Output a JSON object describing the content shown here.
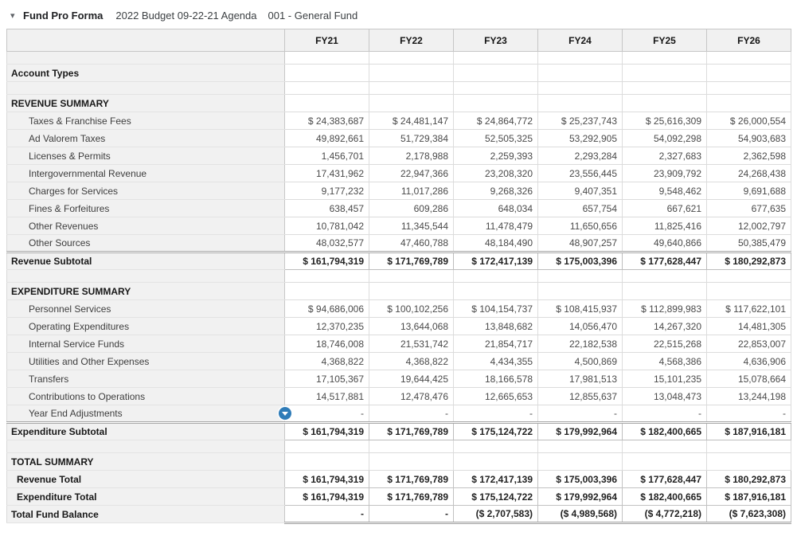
{
  "header": {
    "collapse_icon": "▾",
    "title": "Fund Pro Forma",
    "budget_name": "2022 Budget 09-22-21 Agenda",
    "fund_name": "001 - General Fund"
  },
  "colors": {
    "accent_blue": "#2f7cb8",
    "label_column_bg": "#f1f1f1",
    "grid_border": "#dcdcdc"
  },
  "table": {
    "columns": [
      "FY21",
      "FY22",
      "FY23",
      "FY24",
      "FY25",
      "FY26"
    ],
    "rows": [
      {
        "type": "spacer",
        "label": "",
        "values": [
          "",
          "",
          "",
          "",
          "",
          ""
        ]
      },
      {
        "type": "group",
        "label": "Account Types",
        "values": [
          "",
          "",
          "",
          "",
          "",
          ""
        ]
      },
      {
        "type": "spacer",
        "label": "",
        "values": [
          "",
          "",
          "",
          "",
          "",
          ""
        ]
      },
      {
        "type": "section",
        "label": "REVENUE SUMMARY",
        "values": [
          "",
          "",
          "",
          "",
          "",
          ""
        ]
      },
      {
        "type": "detail",
        "label": "Taxes & Franchise Fees",
        "values": [
          "$ 24,383,687",
          "$ 24,481,147",
          "$ 24,864,772",
          "$ 25,237,743",
          "$ 25,616,309",
          "$ 26,000,554"
        ]
      },
      {
        "type": "detail",
        "label": "Ad Valorem Taxes",
        "values": [
          "49,892,661",
          "51,729,384",
          "52,505,325",
          "53,292,905",
          "54,092,298",
          "54,903,683"
        ]
      },
      {
        "type": "detail",
        "label": "Licenses & Permits",
        "values": [
          "1,456,701",
          "2,178,988",
          "2,259,393",
          "2,293,284",
          "2,327,683",
          "2,362,598"
        ]
      },
      {
        "type": "detail",
        "label": "Intergovernmental Revenue",
        "values": [
          "17,431,962",
          "22,947,366",
          "23,208,320",
          "23,556,445",
          "23,909,792",
          "24,268,438"
        ]
      },
      {
        "type": "detail",
        "label": "Charges for Services",
        "values": [
          "9,177,232",
          "11,017,286",
          "9,268,326",
          "9,407,351",
          "9,548,462",
          "9,691,688"
        ]
      },
      {
        "type": "detail",
        "label": "Fines & Forfeitures",
        "values": [
          "638,457",
          "609,286",
          "648,034",
          "657,754",
          "667,621",
          "677,635"
        ]
      },
      {
        "type": "detail",
        "label": "Other Revenues",
        "values": [
          "10,781,042",
          "11,345,544",
          "11,478,479",
          "11,650,656",
          "11,825,416",
          "12,002,797"
        ]
      },
      {
        "type": "detail",
        "label": "Other Sources",
        "values": [
          "48,032,577",
          "47,460,788",
          "48,184,490",
          "48,907,257",
          "49,640,866",
          "50,385,479"
        ]
      },
      {
        "type": "subtotal",
        "label": "Revenue Subtotal",
        "values": [
          "$ 161,794,319",
          "$ 171,769,789",
          "$ 172,417,139",
          "$ 175,003,396",
          "$ 177,628,447",
          "$ 180,292,873"
        ]
      },
      {
        "type": "spacer",
        "label": "",
        "values": [
          "",
          "",
          "",
          "",
          "",
          ""
        ]
      },
      {
        "type": "section",
        "label": "EXPENDITURE SUMMARY",
        "values": [
          "",
          "",
          "",
          "",
          "",
          ""
        ]
      },
      {
        "type": "detail",
        "label": "Personnel Services",
        "values": [
          "$ 94,686,006",
          "$ 100,102,256",
          "$ 104,154,737",
          "$ 108,415,937",
          "$ 112,899,983",
          "$ 117,622,101"
        ]
      },
      {
        "type": "detail",
        "label": "Operating Expenditures",
        "values": [
          "12,370,235",
          "13,644,068",
          "13,848,682",
          "14,056,470",
          "14,267,320",
          "14,481,305"
        ]
      },
      {
        "type": "detail",
        "label": "Internal Service Funds",
        "values": [
          "18,746,008",
          "21,531,742",
          "21,854,717",
          "22,182,538",
          "22,515,268",
          "22,853,007"
        ]
      },
      {
        "type": "detail",
        "label": "Utilities and Other Expenses",
        "values": [
          "4,368,822",
          "4,368,822",
          "4,434,355",
          "4,500,869",
          "4,568,386",
          "4,636,906"
        ]
      },
      {
        "type": "detail",
        "label": "Transfers",
        "values": [
          "17,105,367",
          "19,644,425",
          "18,166,578",
          "17,981,513",
          "15,101,235",
          "15,078,664"
        ]
      },
      {
        "type": "detail",
        "label": "Contributions to Operations",
        "values": [
          "14,517,881",
          "12,478,476",
          "12,665,653",
          "12,855,637",
          "13,048,473",
          "13,244,198"
        ]
      },
      {
        "type": "detail",
        "label": "Year End Adjustments",
        "icon": true,
        "values": [
          "-",
          "-",
          "-",
          "-",
          "-",
          "-"
        ]
      },
      {
        "type": "subtotal",
        "label": "Expenditure Subtotal",
        "values": [
          "$ 161,794,319",
          "$ 171,769,789",
          "$ 175,124,722",
          "$ 179,992,964",
          "$ 182,400,665",
          "$ 187,916,181"
        ]
      },
      {
        "type": "spacer",
        "label": "",
        "values": [
          "",
          "",
          "",
          "",
          "",
          ""
        ]
      },
      {
        "type": "section",
        "label": "TOTAL SUMMARY",
        "values": [
          "",
          "",
          "",
          "",
          "",
          ""
        ]
      },
      {
        "type": "total",
        "label": "Revenue Total",
        "values": [
          "$ 161,794,319",
          "$ 171,769,789",
          "$ 172,417,139",
          "$ 175,003,396",
          "$ 177,628,447",
          "$ 180,292,873"
        ]
      },
      {
        "type": "total",
        "label": "Expenditure Total",
        "values": [
          "$ 161,794,319",
          "$ 171,769,789",
          "$ 175,124,722",
          "$ 179,992,964",
          "$ 182,400,665",
          "$ 187,916,181"
        ]
      },
      {
        "type": "grand",
        "label": "Total Fund Balance",
        "values": [
          "-",
          "-",
          "($ 2,707,583)",
          "($ 4,989,568)",
          "($ 4,772,218)",
          "($ 7,623,308)"
        ]
      }
    ]
  }
}
